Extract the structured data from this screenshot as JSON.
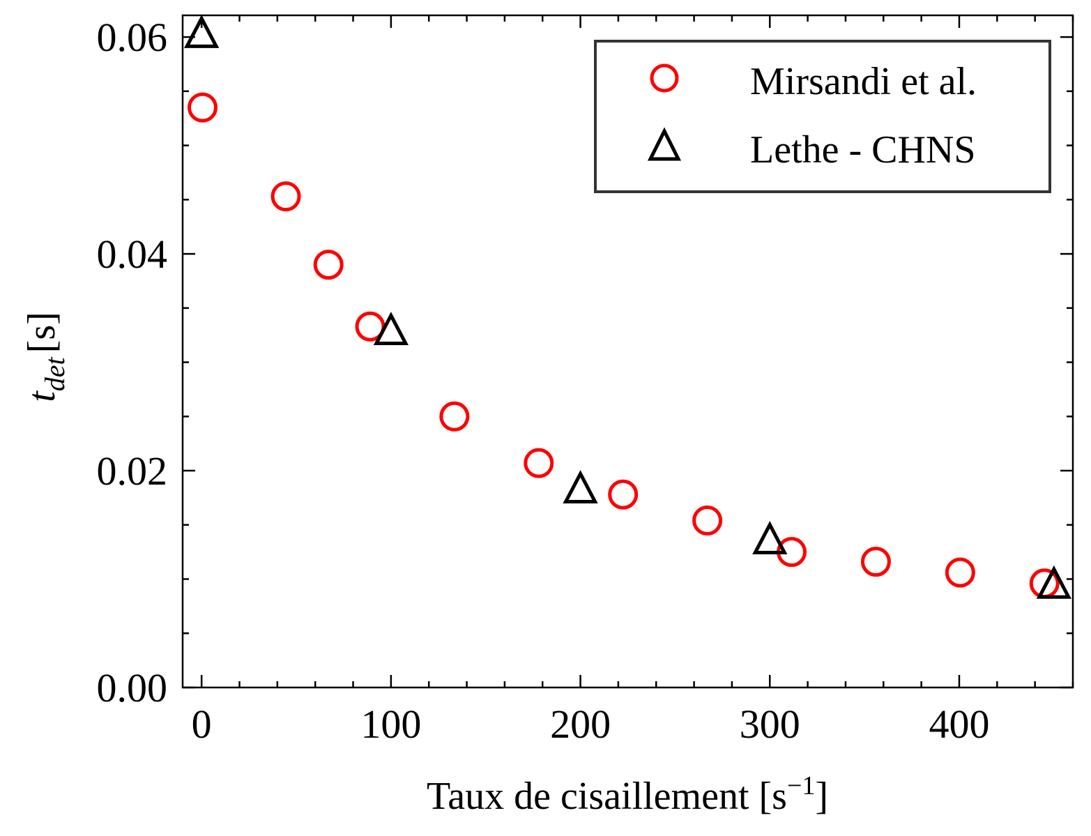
{
  "chart_data": {
    "type": "scatter",
    "xlabel": "Taux de cisaillement  [s",
    "xlabel_sup": "−1",
    "xlabel_end": "]",
    "ylabel_main": "t",
    "ylabel_sub": "det",
    "ylabel_unit": "[s]",
    "xlim": [
      -10,
      460
    ],
    "ylim": [
      0,
      0.062
    ],
    "xticks": [
      0,
      100,
      200,
      300,
      400
    ],
    "xtick_labels": [
      "0",
      "100",
      "200",
      "300",
      "400"
    ],
    "yticks": [
      0,
      0.02,
      0.04,
      0.06
    ],
    "ytick_labels": [
      "0.00",
      "0.02",
      "0.04",
      "0.06"
    ],
    "legend_position": "top-right",
    "grid": false,
    "series": [
      {
        "name": "Mirsandi et al.",
        "marker": "circle",
        "color": "#ff0000",
        "points": [
          [
            0.5,
            0.0535
          ],
          [
            44.5,
            0.0453
          ],
          [
            67,
            0.039
          ],
          [
            89,
            0.0333
          ],
          [
            133.5,
            0.025
          ],
          [
            178,
            0.0207
          ],
          [
            222.5,
            0.0178
          ],
          [
            267,
            0.0154
          ],
          [
            311.5,
            0.0125
          ],
          [
            356,
            0.0116
          ],
          [
            400.5,
            0.0106
          ],
          [
            445,
            0.0096
          ]
        ]
      },
      {
        "name": "Lethe - CHNS",
        "marker": "triangle",
        "color": "#000000",
        "points": [
          [
            0,
            0.0603
          ],
          [
            100,
            0.0329
          ],
          [
            200,
            0.0183
          ],
          [
            300,
            0.0136
          ],
          [
            450,
            0.0095
          ]
        ]
      }
    ]
  }
}
